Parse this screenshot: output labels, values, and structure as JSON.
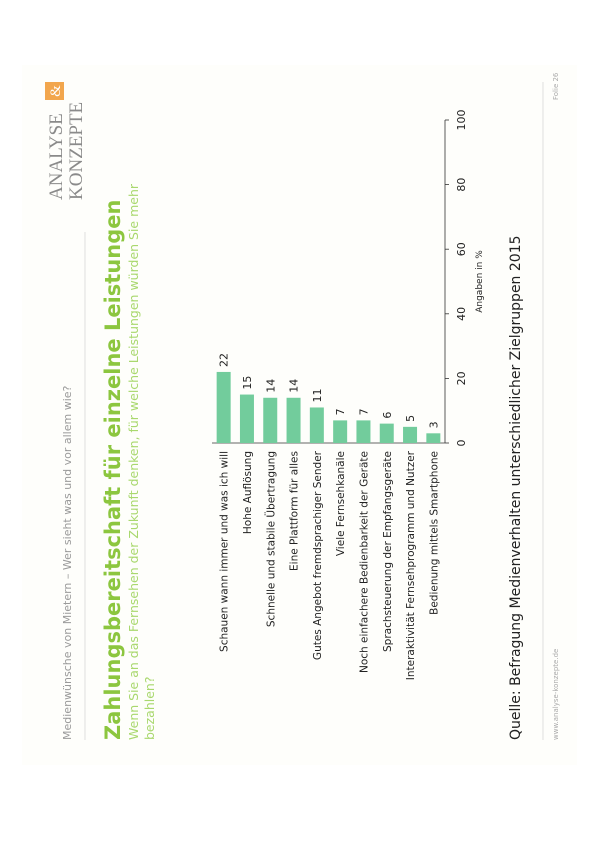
{
  "header": {
    "topic": "Medienwünsche von Mietern – Wer sieht was und vor allem wie?",
    "logo": {
      "line1": "ANALYSE",
      "ampersand": "&",
      "line2": "KONZEPTE"
    },
    "slide_number": "Folie 26"
  },
  "chart_data": {
    "type": "bar",
    "orientation": "horizontal",
    "title": "Zahlungsbereitschaft für einzelne Leistungen",
    "subtitle_lines": [
      "Wenn Sie an das Fernsehen der Zukunft denken, für welche Leistungen würden Sie mehr",
      "bezahlen?"
    ],
    "categories": [
      "Schauen wann immer und was ich will",
      "Hohe Auflösung",
      "Schnelle und stabile Übertragung",
      "Eine Plattform für alles",
      "Gutes Angebot fremdsprachiger Sender",
      "Viele Fernsehkanäle",
      "Noch einfachere Bedienbarkeit der Geräte",
      "Sprachsteuerung der Empfangsgeräte",
      "Interaktivität Fernsehprogramm und Nutzer",
      "Bedienung mittels Smartphone"
    ],
    "values": [
      22,
      15,
      14,
      14,
      11,
      7,
      7,
      6,
      5,
      3
    ],
    "color": "#72cc9c",
    "xlim": [
      0,
      100
    ],
    "xticks": [
      0,
      20,
      40,
      60,
      80,
      100
    ],
    "x_label": "Angaben in %"
  },
  "source": "Quelle: Befragung Medienverhalten unterschiedlicher Zielgruppen 2015",
  "footer": {
    "url": "www.analyse-konzepte.de"
  }
}
